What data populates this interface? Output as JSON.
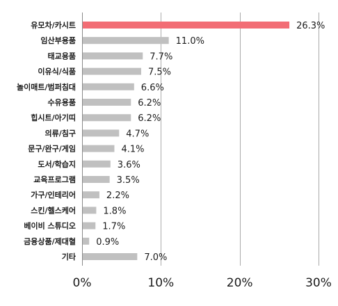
{
  "chart_data": {
    "type": "bar",
    "orientation": "horizontal",
    "categories": [
      "유모차/카시트",
      "임산부용품",
      "태교용품",
      "이유식/식품",
      "놀이매트/범퍼침대",
      "수유용품",
      "힙시트/아기띠",
      "의류/침구",
      "문구/완구/게임",
      "도서/학습지",
      "교육프로그램",
      "가구/인테리어",
      "스킨/헬스케어",
      "베이비 스튜디오",
      "금융상품/제대혈",
      "기타"
    ],
    "values": [
      26.3,
      11.0,
      7.7,
      7.5,
      6.6,
      6.2,
      6.2,
      4.7,
      4.1,
      3.6,
      3.5,
      2.2,
      1.8,
      1.7,
      0.9,
      7.0
    ],
    "value_labels": [
      "26.3%",
      "11.0%",
      "7.7%",
      "7.5%",
      "6.6%",
      "6.2%",
      "6.2%",
      "4.7%",
      "4.1%",
      "3.6%",
      "3.5%",
      "2.2%",
      "1.8%",
      "1.7%",
      "0.9%",
      "7.0%"
    ],
    "xlim": [
      0,
      30
    ],
    "xticks": [
      0,
      10,
      20,
      30
    ],
    "xtick_labels": [
      "0%",
      "10%",
      "20%",
      "30%"
    ],
    "title": "",
    "xlabel": "",
    "ylabel": "",
    "grid": "vertical",
    "legend": "none",
    "highlight_index": 0,
    "colors": {
      "highlight": "#f26d75",
      "bar": "#c0c0c0",
      "grid": "#aaaaaa",
      "text": "#1a1a1a"
    }
  }
}
